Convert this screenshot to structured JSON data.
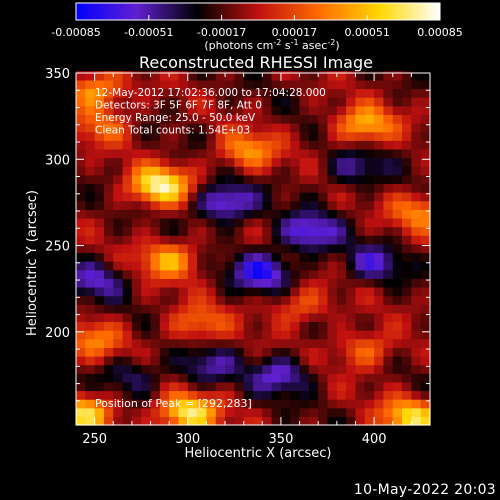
{
  "chart_data": {
    "type": "heatmap",
    "title": "Reconstructed RHESSI Image",
    "xlabel": "Heliocentric X (arcsec)",
    "ylabel": "Heliocentric Y (arcsec)",
    "xlim": [
      240,
      430
    ],
    "ylim": [
      146,
      350
    ],
    "xticks": [
      250,
      300,
      350,
      400
    ],
    "yticks": [
      200,
      250,
      300,
      350
    ],
    "colorbar": {
      "ticks": [
        "-0.00085",
        "-0.00051",
        "-0.00017",
        "0.00017",
        "0.00051",
        "0.00085"
      ],
      "range": [
        -0.00085,
        0.00085
      ],
      "unit_label": "(photons cm^-2 s^-1 asec^-2)",
      "colors": [
        "#0000ff",
        "#6020d0",
        "#000000",
        "#c01010",
        "#ff6a00",
        "#ffd700",
        "#ffffff"
      ]
    },
    "annotations": [
      "12-May-2012 17:02:36.000 to 17:04:28.000",
      "Detectors: 3F 5F 6F 7F 8F, Att 0",
      "Energy Range: 25.0 - 50.0 keV",
      "Clean     Total counts: 1.54E+03"
    ],
    "peak_label": "Position of Peak = [292,283]",
    "peak": [
      292,
      283
    ],
    "hotspots": [
      {
        "x": 285,
        "y": 285,
        "value": 0.00085
      },
      {
        "x": 300,
        "y": 153,
        "value": 0.0008
      },
      {
        "x": 245,
        "y": 153,
        "value": 0.0007
      },
      {
        "x": 420,
        "y": 151,
        "value": 0.0007
      },
      {
        "x": 395,
        "y": 320,
        "value": 0.0006
      },
      {
        "x": 250,
        "y": 340,
        "value": 0.00055
      },
      {
        "x": 290,
        "y": 242,
        "value": 0.00055
      },
      {
        "x": 332,
        "y": 305,
        "value": 0.0005
      },
      {
        "x": 425,
        "y": 270,
        "value": 0.00045
      },
      {
        "x": 250,
        "y": 195,
        "value": 0.0004
      },
      {
        "x": 305,
        "y": 205,
        "value": 0.0004
      },
      {
        "x": 360,
        "y": 215,
        "value": 0.00035
      },
      {
        "x": 395,
        "y": 190,
        "value": 0.0004
      },
      {
        "x": 255,
        "y": 320,
        "value": 0.00035
      }
    ],
    "coldspots": [
      {
        "x": 320,
        "y": 275,
        "value": -0.0006
      },
      {
        "x": 340,
        "y": 235,
        "value": -0.0006
      },
      {
        "x": 365,
        "y": 258,
        "value": -0.00055
      },
      {
        "x": 250,
        "y": 230,
        "value": -0.0004
      },
      {
        "x": 350,
        "y": 175,
        "value": -0.00045
      },
      {
        "x": 400,
        "y": 240,
        "value": -0.0004
      },
      {
        "x": 390,
        "y": 295,
        "value": -0.00035
      },
      {
        "x": 270,
        "y": 175,
        "value": -0.0003
      },
      {
        "x": 310,
        "y": 180,
        "value": -0.00035
      }
    ]
  },
  "timestamp": "10-May-2022 20:03"
}
